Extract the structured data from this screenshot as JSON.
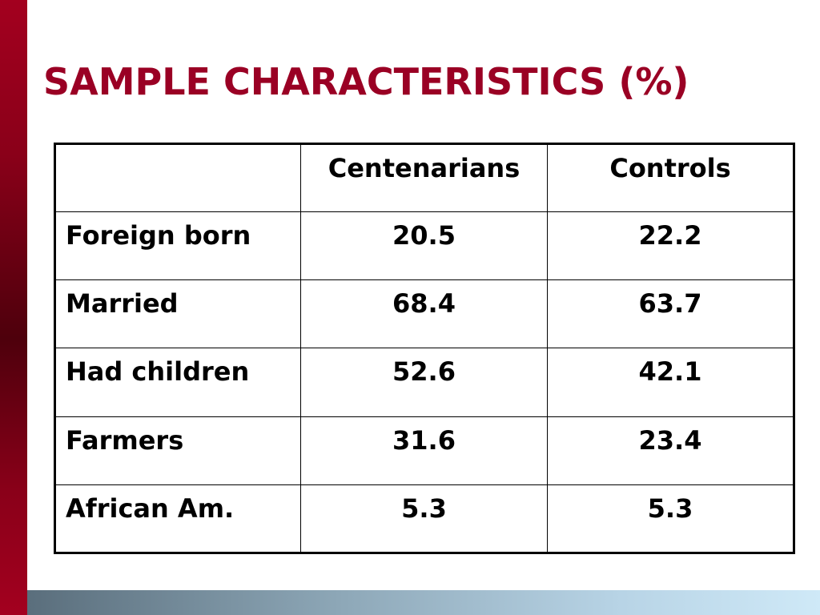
{
  "slide": {
    "title": "SAMPLE CHARACTERISTICS (%)",
    "accent_color": "#9a0024"
  },
  "table": {
    "headers": [
      "",
      "Centenarians",
      "Controls"
    ],
    "rows": [
      {
        "label": "Foreign born",
        "centenarians": "20.5",
        "controls": "22.2"
      },
      {
        "label": "Married",
        "centenarians": "68.4",
        "controls": "63.7"
      },
      {
        "label": "Had children",
        "centenarians": "52.6",
        "controls": "42.1"
      },
      {
        "label": "Farmers",
        "centenarians": "31.6",
        "controls": "23.4"
      },
      {
        "label": "African Am.",
        "centenarians": "5.3",
        "controls": "5.3"
      }
    ]
  }
}
